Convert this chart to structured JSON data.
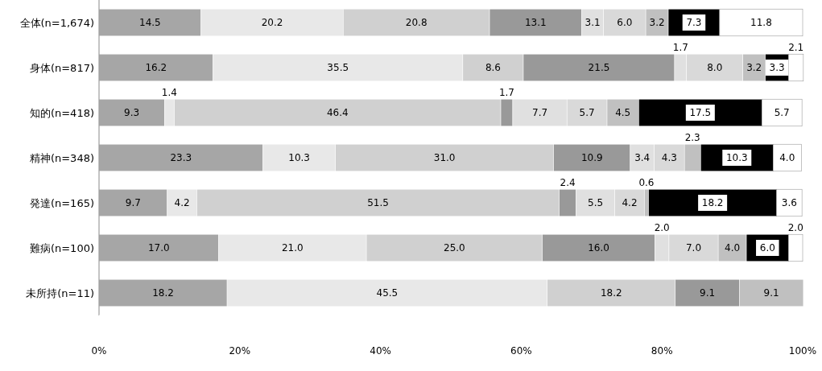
{
  "chart_data": {
    "type": "bar",
    "orientation": "horizontal",
    "stacked": true,
    "categories": [
      "全体(n=1,674)",
      "身体(n=817)",
      "知的(n=418)",
      "精神(n=348)",
      "発達(n=165)",
      "難病(n=100)",
      "未所持(n=11)"
    ],
    "series": [
      {
        "color": "#a6a6a6",
        "values": [
          14.5,
          16.2,
          9.3,
          23.3,
          9.7,
          17.0,
          18.2
        ],
        "value_labels": [
          "14.5",
          "16.2",
          "9.3",
          "23.3",
          "9.7",
          "17.0",
          "18.2"
        ]
      },
      {
        "color": "#e8e8e8",
        "values": [
          20.2,
          35.5,
          1.4,
          10.3,
          4.2,
          21.0,
          45.5
        ],
        "value_labels": [
          "20.2",
          "35.5",
          "1.4",
          "10.3",
          "4.2",
          "21.0",
          "45.5"
        ]
      },
      {
        "color": "#d0d0d0",
        "values": [
          20.8,
          8.6,
          46.4,
          31.0,
          51.5,
          25.0,
          18.2
        ],
        "value_labels": [
          "20.8",
          "8.6",
          "46.4",
          "31.0",
          "51.5",
          "25.0",
          "18.2"
        ]
      },
      {
        "color": "#999999",
        "values": [
          13.1,
          21.5,
          1.7,
          10.9,
          2.4,
          16.0,
          9.1
        ],
        "value_labels": [
          "13.1",
          "21.5",
          "1.7",
          "10.9",
          "2.4",
          "16.0",
          "9.1"
        ]
      },
      {
        "color": "#e0e0e0",
        "values": [
          3.1,
          1.7,
          7.7,
          3.4,
          5.5,
          2.0,
          null
        ],
        "value_labels": [
          "3.1",
          "1.7",
          "7.7",
          "3.4",
          "5.5",
          "2.0",
          null
        ]
      },
      {
        "color": "#d9d9d9",
        "values": [
          6.0,
          8.0,
          5.7,
          4.3,
          4.2,
          7.0,
          null
        ],
        "value_labels": [
          "6.0",
          "8.0",
          "5.7",
          "4.3",
          "4.2",
          "7.0",
          null
        ]
      },
      {
        "color": "#c0c0c0",
        "values": [
          3.2,
          3.2,
          4.5,
          2.3,
          0.6,
          4.0,
          9.1
        ],
        "value_labels": [
          "3.2",
          "3.2",
          "4.5",
          "2.3",
          "0.6",
          "4.0",
          "9.1"
        ]
      },
      {
        "color": "#000000",
        "values": [
          7.3,
          3.3,
          17.5,
          10.3,
          18.2,
          6.0,
          null
        ],
        "value_labels": [
          "7.3",
          "3.3",
          "17.5",
          "10.3",
          "18.2",
          "6.0",
          null
        ]
      },
      {
        "color": "#ffffff",
        "values": [
          11.8,
          2.1,
          5.7,
          4.0,
          3.6,
          2.0,
          null
        ],
        "value_labels": [
          "11.8",
          "2.1",
          "5.7",
          "4.0",
          "3.6",
          "2.0",
          null
        ]
      }
    ],
    "xlim": [
      0,
      100
    ],
    "xticks": [
      {
        "value": 0,
        "label": "0%"
      },
      {
        "value": 20,
        "label": "20%"
      },
      {
        "value": 40,
        "label": "40%"
      },
      {
        "value": 60,
        "label": "60%"
      },
      {
        "value": 80,
        "label": "80%"
      },
      {
        "value": 100,
        "label": "100%"
      }
    ],
    "grid": false
  }
}
